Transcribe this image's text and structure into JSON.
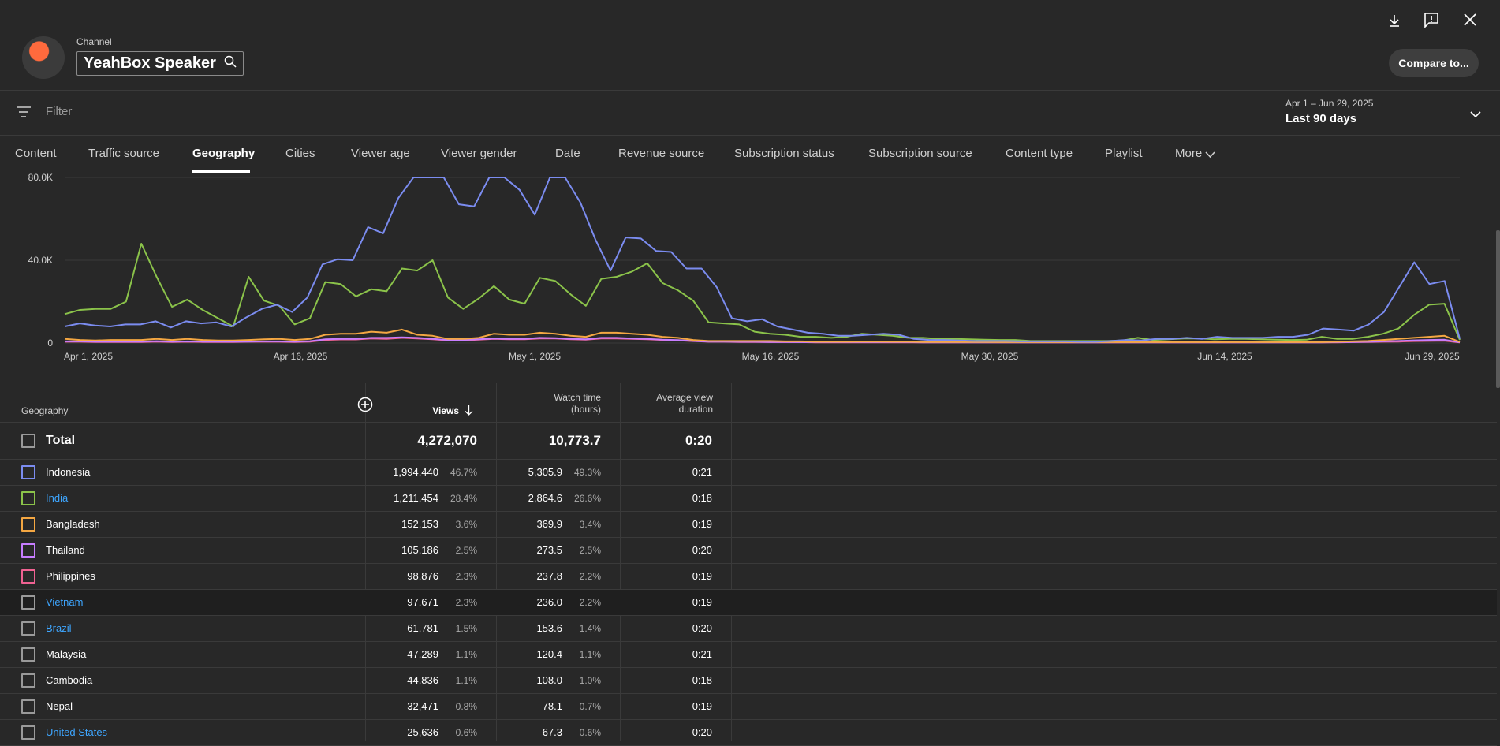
{
  "header": {
    "channel_label": "Channel",
    "channel_name": "YeahBox Speaker",
    "compare_label": "Compare to..."
  },
  "filter": {
    "placeholder": "Filter"
  },
  "date": {
    "range": "Apr 1 – Jun 29, 2025",
    "label": "Last 90 days"
  },
  "tabs": [
    "Content",
    "Traffic source",
    "Geography",
    "Cities",
    "Viewer age",
    "Viewer gender",
    "Date",
    "Revenue source",
    "Subscription status",
    "Subscription source",
    "Content type",
    "Playlist",
    "More"
  ],
  "active_tab": "Geography",
  "chart_data": {
    "type": "line",
    "x_ticks": [
      "Apr 1, 2025",
      "Apr 16, 2025",
      "May 1, 2025",
      "May 16, 2025",
      "May 30, 2025",
      "Jun 14, 2025",
      "Jun 29, 2025"
    ],
    "y_ticks": [
      "80.0K",
      "40.0K",
      "0"
    ],
    "ylim": [
      0,
      80000
    ],
    "grid": true,
    "series": [
      {
        "color": "#7b8cf0",
        "values": [
          8000,
          9500,
          8500,
          8000,
          9000,
          9000,
          10500,
          7500,
          10500,
          9500,
          10000,
          8000,
          12500,
          16500,
          18500,
          15000,
          22000,
          38000,
          40500,
          40000,
          56000,
          53000,
          70000,
          80000,
          80000,
          80000,
          67000,
          66000,
          80000,
          80000,
          74000,
          62000,
          80000,
          80000,
          68000,
          50000,
          35000,
          51000,
          50500,
          44500,
          44000,
          36000,
          36000,
          27000,
          12000,
          10500,
          11500,
          8000,
          6500,
          5000,
          4500,
          3500,
          3500,
          4000,
          4500,
          4000,
          2000,
          1500,
          1500,
          1200,
          1000,
          1000,
          1000,
          800,
          800,
          800,
          800,
          600,
          600,
          1000,
          1500,
          1200,
          2000,
          2000,
          2500,
          2000,
          3000,
          2500,
          2500,
          2500,
          3000,
          3000,
          4000,
          7000,
          6500,
          6000,
          9000,
          15000,
          27000,
          39000,
          28500,
          30000,
          2000
        ]
      },
      {
        "color": "#8bc34a",
        "values": [
          14000,
          16000,
          16500,
          16500,
          20000,
          48000,
          32000,
          17500,
          21000,
          16000,
          12000,
          8000,
          32000,
          20500,
          18000,
          9000,
          12000,
          29500,
          28500,
          22500,
          26000,
          25000,
          36000,
          35000,
          40000,
          22000,
          16500,
          21500,
          27500,
          21000,
          19000,
          31500,
          30000,
          23500,
          18000,
          31000,
          32000,
          34500,
          38500,
          29000,
          25500,
          20500,
          10000,
          9500,
          9000,
          5500,
          4500,
          4000,
          3000,
          3000,
          2500,
          3000,
          4500,
          4000,
          3500,
          2500,
          2500,
          2000,
          2000,
          1800,
          1600,
          1500,
          1500,
          1000,
          1000,
          1000,
          1000,
          1000,
          1000,
          1200,
          2500,
          1500,
          1800,
          2200,
          2200,
          1800,
          2000,
          2000,
          1800,
          1600,
          1500,
          1600,
          3000,
          2000,
          2000,
          3000,
          4500,
          7000,
          13500,
          18500,
          19000,
          1500
        ]
      },
      {
        "color": "#f4a742",
        "values": [
          2000,
          1500,
          1200,
          1500,
          1500,
          1500,
          2000,
          1500,
          2000,
          1500,
          1200,
          1200,
          1500,
          1800,
          2000,
          1500,
          2000,
          4000,
          4500,
          4500,
          5500,
          5000,
          6500,
          4000,
          3500,
          2000,
          2000,
          2500,
          4500,
          4000,
          4000,
          5000,
          4500,
          3500,
          3000,
          5000,
          5000,
          4500,
          4000,
          3000,
          2500,
          1500,
          1000,
          1000,
          1000,
          1000,
          1000,
          800,
          800,
          600,
          600,
          600,
          700,
          700,
          600,
          600,
          500,
          500,
          500,
          500,
          500,
          400,
          400,
          400,
          400,
          400,
          400,
          400,
          400,
          400,
          400,
          400,
          400,
          400,
          400,
          400,
          400,
          400,
          400,
          400,
          400,
          400,
          400,
          600,
          800,
          1000,
          1500,
          2000,
          2500,
          3000,
          3500,
          500
        ]
      },
      {
        "color": "#c77dff",
        "values": [
          800,
          800,
          700,
          700,
          700,
          700,
          900,
          700,
          800,
          700,
          700,
          700,
          700,
          800,
          800,
          700,
          900,
          1800,
          2000,
          2000,
          2500,
          2500,
          2800,
          2500,
          2000,
          1500,
          1500,
          1800,
          2200,
          2000,
          2000,
          2500,
          2400,
          2000,
          1800,
          2500,
          2500,
          2200,
          2000,
          1600,
          1400,
          1000,
          700,
          700,
          600,
          600,
          500,
          500,
          400,
          400,
          400,
          400,
          400,
          400,
          400,
          400,
          300,
          300,
          300,
          300,
          300,
          300,
          300,
          300,
          300,
          300,
          300,
          300,
          300,
          300,
          300,
          300,
          300,
          300,
          300,
          300,
          300,
          300,
          300,
          300,
          300,
          300,
          300,
          400,
          500,
          600,
          800,
          1000,
          1300,
          1500,
          1600,
          300
        ]
      },
      {
        "color": "#f06292",
        "values": [
          600,
          600,
          500,
          500,
          500,
          500,
          700,
          500,
          600,
          500,
          500,
          500,
          600,
          600,
          600,
          500,
          700,
          1500,
          1700,
          1700,
          2200,
          2000,
          2500,
          2200,
          1800,
          1300,
          1300,
          1600,
          2000,
          1800,
          1800,
          2200,
          2200,
          1800,
          1600,
          2200,
          2200,
          2000,
          1800,
          1500,
          1300,
          900,
          600,
          600,
          500,
          500,
          400,
          400,
          400,
          300,
          300,
          300,
          300,
          300,
          300,
          300,
          300,
          300,
          300,
          300,
          300,
          300,
          300,
          300,
          300,
          300,
          300,
          300,
          300,
          300,
          300,
          300,
          300,
          300,
          300,
          300,
          300,
          300,
          300,
          300,
          300,
          300,
          300,
          300,
          400,
          500,
          600,
          700,
          900,
          1000,
          1100,
          300
        ]
      }
    ]
  },
  "table": {
    "headers": {
      "geography": "Geography",
      "views": "Views",
      "watch_line1": "Watch time",
      "watch_line2": "(hours)",
      "avd_line1": "Average view",
      "avd_line2": "duration"
    },
    "total": {
      "label": "Total",
      "views": "4,272,070",
      "watch": "10,773.7",
      "avd": "0:20"
    },
    "rows": [
      {
        "name": "Indonesia",
        "link": false,
        "box": "#7b8cf0",
        "views": "1,994,440",
        "vpct": "46.7%",
        "watch": "5,305.9",
        "wpct": "49.3%",
        "avd": "0:21"
      },
      {
        "name": "India",
        "link": true,
        "box": "#8bc34a",
        "views": "1,211,454",
        "vpct": "28.4%",
        "watch": "2,864.6",
        "wpct": "26.6%",
        "avd": "0:18"
      },
      {
        "name": "Bangladesh",
        "link": false,
        "box": "#f4a742",
        "views": "152,153",
        "vpct": "3.6%",
        "watch": "369.9",
        "wpct": "3.4%",
        "avd": "0:19"
      },
      {
        "name": "Thailand",
        "link": false,
        "box": "#c77dff",
        "views": "105,186",
        "vpct": "2.5%",
        "watch": "273.5",
        "wpct": "2.5%",
        "avd": "0:20"
      },
      {
        "name": "Philippines",
        "link": false,
        "box": "#f06292",
        "views": "98,876",
        "vpct": "2.3%",
        "watch": "237.8",
        "wpct": "2.2%",
        "avd": "0:19"
      },
      {
        "name": "Vietnam",
        "link": true,
        "box": "#9a9a9a",
        "views": "97,671",
        "vpct": "2.3%",
        "watch": "236.0",
        "wpct": "2.2%",
        "avd": "0:19"
      },
      {
        "name": "Brazil",
        "link": true,
        "box": "#9a9a9a",
        "views": "61,781",
        "vpct": "1.5%",
        "watch": "153.6",
        "wpct": "1.4%",
        "avd": "0:20"
      },
      {
        "name": "Malaysia",
        "link": false,
        "box": "#9a9a9a",
        "views": "47,289",
        "vpct": "1.1%",
        "watch": "120.4",
        "wpct": "1.1%",
        "avd": "0:21"
      },
      {
        "name": "Cambodia",
        "link": false,
        "box": "#9a9a9a",
        "views": "44,836",
        "vpct": "1.1%",
        "watch": "108.0",
        "wpct": "1.0%",
        "avd": "0:18"
      },
      {
        "name": "Nepal",
        "link": false,
        "box": "#9a9a9a",
        "views": "32,471",
        "vpct": "0.8%",
        "watch": "78.1",
        "wpct": "0.7%",
        "avd": "0:19"
      },
      {
        "name": "United States",
        "link": true,
        "box": "#9a9a9a",
        "views": "25,636",
        "vpct": "0.6%",
        "watch": "67.3",
        "wpct": "0.6%",
        "avd": "0:20"
      }
    ]
  }
}
